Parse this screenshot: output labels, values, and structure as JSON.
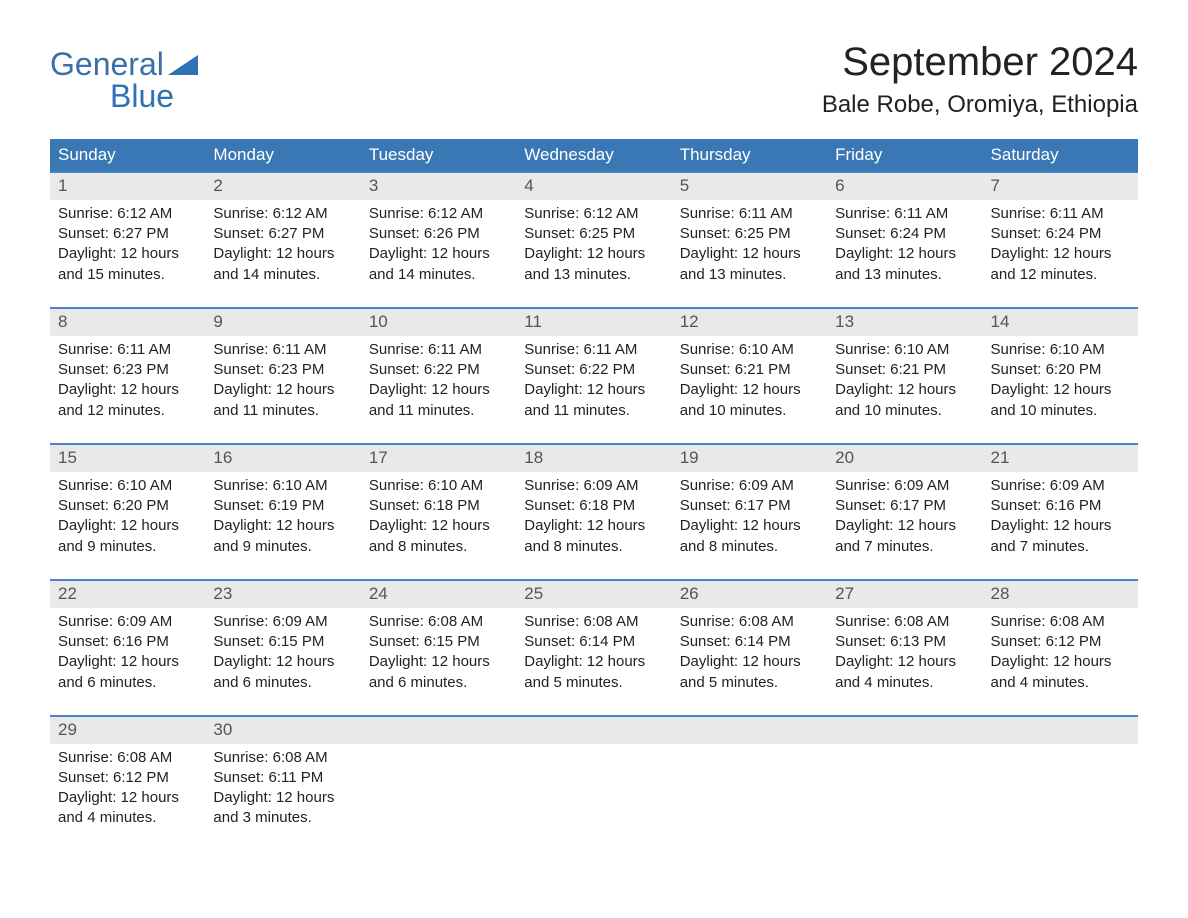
{
  "logo": {
    "top": "General",
    "bottom": "Blue"
  },
  "header": {
    "month_title": "September 2024",
    "location": "Bale Robe, Oromiya, Ethiopia"
  },
  "colors": {
    "header_bg": "#3a78b5",
    "header_text": "#ffffff",
    "daynum_bg": "#e9e9e9",
    "daynum_text": "#555555",
    "week_border": "#4a84be",
    "body_text": "#222222",
    "logo_color": "#3a6fa8"
  },
  "day_labels": [
    "Sunday",
    "Monday",
    "Tuesday",
    "Wednesday",
    "Thursday",
    "Friday",
    "Saturday"
  ],
  "weeks": [
    [
      {
        "num": "1",
        "sunrise": "Sunrise: 6:12 AM",
        "sunset": "Sunset: 6:27 PM",
        "daylight1": "Daylight: 12 hours",
        "daylight2": "and 15 minutes."
      },
      {
        "num": "2",
        "sunrise": "Sunrise: 6:12 AM",
        "sunset": "Sunset: 6:27 PM",
        "daylight1": "Daylight: 12 hours",
        "daylight2": "and 14 minutes."
      },
      {
        "num": "3",
        "sunrise": "Sunrise: 6:12 AM",
        "sunset": "Sunset: 6:26 PM",
        "daylight1": "Daylight: 12 hours",
        "daylight2": "and 14 minutes."
      },
      {
        "num": "4",
        "sunrise": "Sunrise: 6:12 AM",
        "sunset": "Sunset: 6:25 PM",
        "daylight1": "Daylight: 12 hours",
        "daylight2": "and 13 minutes."
      },
      {
        "num": "5",
        "sunrise": "Sunrise: 6:11 AM",
        "sunset": "Sunset: 6:25 PM",
        "daylight1": "Daylight: 12 hours",
        "daylight2": "and 13 minutes."
      },
      {
        "num": "6",
        "sunrise": "Sunrise: 6:11 AM",
        "sunset": "Sunset: 6:24 PM",
        "daylight1": "Daylight: 12 hours",
        "daylight2": "and 13 minutes."
      },
      {
        "num": "7",
        "sunrise": "Sunrise: 6:11 AM",
        "sunset": "Sunset: 6:24 PM",
        "daylight1": "Daylight: 12 hours",
        "daylight2": "and 12 minutes."
      }
    ],
    [
      {
        "num": "8",
        "sunrise": "Sunrise: 6:11 AM",
        "sunset": "Sunset: 6:23 PM",
        "daylight1": "Daylight: 12 hours",
        "daylight2": "and 12 minutes."
      },
      {
        "num": "9",
        "sunrise": "Sunrise: 6:11 AM",
        "sunset": "Sunset: 6:23 PM",
        "daylight1": "Daylight: 12 hours",
        "daylight2": "and 11 minutes."
      },
      {
        "num": "10",
        "sunrise": "Sunrise: 6:11 AM",
        "sunset": "Sunset: 6:22 PM",
        "daylight1": "Daylight: 12 hours",
        "daylight2": "and 11 minutes."
      },
      {
        "num": "11",
        "sunrise": "Sunrise: 6:11 AM",
        "sunset": "Sunset: 6:22 PM",
        "daylight1": "Daylight: 12 hours",
        "daylight2": "and 11 minutes."
      },
      {
        "num": "12",
        "sunrise": "Sunrise: 6:10 AM",
        "sunset": "Sunset: 6:21 PM",
        "daylight1": "Daylight: 12 hours",
        "daylight2": "and 10 minutes."
      },
      {
        "num": "13",
        "sunrise": "Sunrise: 6:10 AM",
        "sunset": "Sunset: 6:21 PM",
        "daylight1": "Daylight: 12 hours",
        "daylight2": "and 10 minutes."
      },
      {
        "num": "14",
        "sunrise": "Sunrise: 6:10 AM",
        "sunset": "Sunset: 6:20 PM",
        "daylight1": "Daylight: 12 hours",
        "daylight2": "and 10 minutes."
      }
    ],
    [
      {
        "num": "15",
        "sunrise": "Sunrise: 6:10 AM",
        "sunset": "Sunset: 6:20 PM",
        "daylight1": "Daylight: 12 hours",
        "daylight2": "and 9 minutes."
      },
      {
        "num": "16",
        "sunrise": "Sunrise: 6:10 AM",
        "sunset": "Sunset: 6:19 PM",
        "daylight1": "Daylight: 12 hours",
        "daylight2": "and 9 minutes."
      },
      {
        "num": "17",
        "sunrise": "Sunrise: 6:10 AM",
        "sunset": "Sunset: 6:18 PM",
        "daylight1": "Daylight: 12 hours",
        "daylight2": "and 8 minutes."
      },
      {
        "num": "18",
        "sunrise": "Sunrise: 6:09 AM",
        "sunset": "Sunset: 6:18 PM",
        "daylight1": "Daylight: 12 hours",
        "daylight2": "and 8 minutes."
      },
      {
        "num": "19",
        "sunrise": "Sunrise: 6:09 AM",
        "sunset": "Sunset: 6:17 PM",
        "daylight1": "Daylight: 12 hours",
        "daylight2": "and 8 minutes."
      },
      {
        "num": "20",
        "sunrise": "Sunrise: 6:09 AM",
        "sunset": "Sunset: 6:17 PM",
        "daylight1": "Daylight: 12 hours",
        "daylight2": "and 7 minutes."
      },
      {
        "num": "21",
        "sunrise": "Sunrise: 6:09 AM",
        "sunset": "Sunset: 6:16 PM",
        "daylight1": "Daylight: 12 hours",
        "daylight2": "and 7 minutes."
      }
    ],
    [
      {
        "num": "22",
        "sunrise": "Sunrise: 6:09 AM",
        "sunset": "Sunset: 6:16 PM",
        "daylight1": "Daylight: 12 hours",
        "daylight2": "and 6 minutes."
      },
      {
        "num": "23",
        "sunrise": "Sunrise: 6:09 AM",
        "sunset": "Sunset: 6:15 PM",
        "daylight1": "Daylight: 12 hours",
        "daylight2": "and 6 minutes."
      },
      {
        "num": "24",
        "sunrise": "Sunrise: 6:08 AM",
        "sunset": "Sunset: 6:15 PM",
        "daylight1": "Daylight: 12 hours",
        "daylight2": "and 6 minutes."
      },
      {
        "num": "25",
        "sunrise": "Sunrise: 6:08 AM",
        "sunset": "Sunset: 6:14 PM",
        "daylight1": "Daylight: 12 hours",
        "daylight2": "and 5 minutes."
      },
      {
        "num": "26",
        "sunrise": "Sunrise: 6:08 AM",
        "sunset": "Sunset: 6:14 PM",
        "daylight1": "Daylight: 12 hours",
        "daylight2": "and 5 minutes."
      },
      {
        "num": "27",
        "sunrise": "Sunrise: 6:08 AM",
        "sunset": "Sunset: 6:13 PM",
        "daylight1": "Daylight: 12 hours",
        "daylight2": "and 4 minutes."
      },
      {
        "num": "28",
        "sunrise": "Sunrise: 6:08 AM",
        "sunset": "Sunset: 6:12 PM",
        "daylight1": "Daylight: 12 hours",
        "daylight2": "and 4 minutes."
      }
    ],
    [
      {
        "num": "29",
        "sunrise": "Sunrise: 6:08 AM",
        "sunset": "Sunset: 6:12 PM",
        "daylight1": "Daylight: 12 hours",
        "daylight2": "and 4 minutes."
      },
      {
        "num": "30",
        "sunrise": "Sunrise: 6:08 AM",
        "sunset": "Sunset: 6:11 PM",
        "daylight1": "Daylight: 12 hours",
        "daylight2": "and 3 minutes."
      },
      null,
      null,
      null,
      null,
      null
    ]
  ]
}
